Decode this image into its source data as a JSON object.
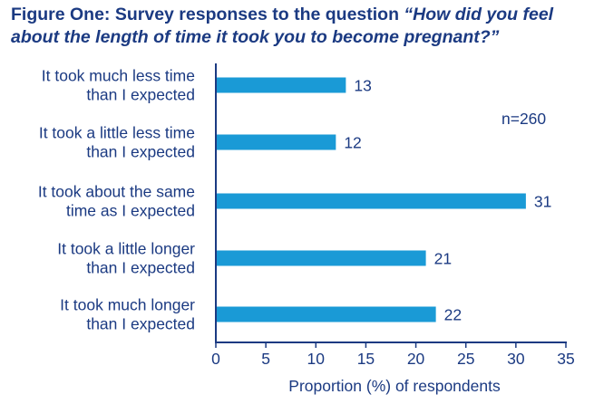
{
  "title": {
    "prefix": "Figure One: Survey responses to the question ",
    "question": "“How did you feel about the length of time it took you to become pregnant?”"
  },
  "chart_data": {
    "type": "bar",
    "orientation": "horizontal",
    "categories": [
      [
        "It took much less time",
        "than I expected"
      ],
      [
        "It took a little less time",
        "than I expected"
      ],
      [
        "It took about the same",
        "time as I expected"
      ],
      [
        "It took a little longer",
        "than I expected"
      ],
      [
        "It took much longer",
        "than I expected"
      ]
    ],
    "values": [
      13,
      12,
      31,
      21,
      22
    ],
    "value_labels": [
      "13",
      "12",
      "31",
      "21",
      "22"
    ],
    "xlabel": "Proportion (%) of respondents",
    "xlim": [
      0,
      35
    ],
    "xticks": [
      0,
      5,
      10,
      15,
      20,
      25,
      30,
      35
    ],
    "note": "n=260",
    "grid": false,
    "bar_color": "#1a9ad6",
    "axis_color": "#1b3a82",
    "text_color": "#1b3a82"
  }
}
